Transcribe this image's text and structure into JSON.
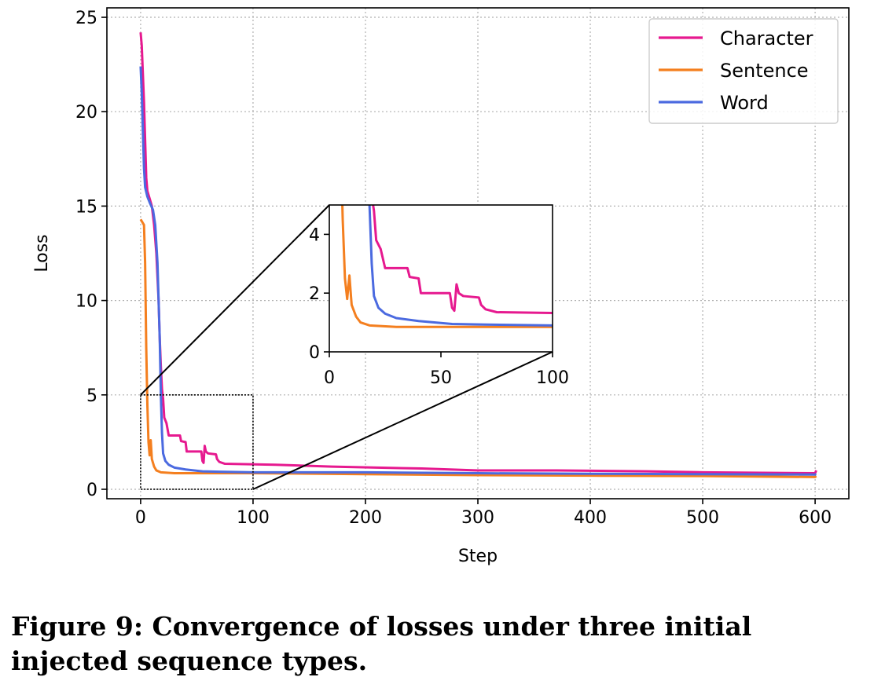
{
  "caption": "Figure 9: Convergence of losses under three initial injected sequence types.",
  "chart_data": {
    "type": "line",
    "xlabel": "Step",
    "ylabel": "Loss",
    "xlim": [
      -30,
      630
    ],
    "ylim": [
      -0.5,
      25.5
    ],
    "xticks": [
      0,
      100,
      200,
      300,
      400,
      500,
      600
    ],
    "yticks": [
      0,
      5,
      10,
      15,
      20,
      25
    ],
    "grid": true,
    "legend_position": "top-right",
    "series": [
      {
        "name": "Character",
        "color": "#e6198f",
        "points": [
          [
            0,
            24.2
          ],
          [
            1,
            23.5
          ],
          [
            2,
            22.0
          ],
          [
            3,
            20.5
          ],
          [
            4,
            18.5
          ],
          [
            5,
            16.5
          ],
          [
            6,
            15.8
          ],
          [
            8,
            15.4
          ],
          [
            10,
            15.0
          ],
          [
            12,
            14.0
          ],
          [
            14,
            12.5
          ],
          [
            16,
            10.0
          ],
          [
            17,
            8.0
          ],
          [
            18,
            6.5
          ],
          [
            19,
            5.3
          ],
          [
            20,
            4.8
          ],
          [
            21,
            3.8
          ],
          [
            23,
            3.5
          ],
          [
            25,
            2.85
          ],
          [
            35,
            2.85
          ],
          [
            36,
            2.55
          ],
          [
            40,
            2.5
          ],
          [
            41,
            2.0
          ],
          [
            54,
            2.0
          ],
          [
            55,
            1.5
          ],
          [
            56,
            1.4
          ],
          [
            57,
            2.3
          ],
          [
            58,
            2.0
          ],
          [
            60,
            1.9
          ],
          [
            67,
            1.85
          ],
          [
            68,
            1.6
          ],
          [
            70,
            1.45
          ],
          [
            75,
            1.35
          ],
          [
            120,
            1.3
          ],
          [
            170,
            1.2
          ],
          [
            250,
            1.1
          ],
          [
            300,
            1.0
          ],
          [
            370,
            1.0
          ],
          [
            450,
            0.95
          ],
          [
            500,
            0.9
          ],
          [
            600,
            0.85
          ],
          [
            601,
            1.0
          ]
        ]
      },
      {
        "name": "Sentence",
        "color": "#f47f1f",
        "points": [
          [
            0,
            14.3
          ],
          [
            1,
            14.2
          ],
          [
            3,
            14.0
          ],
          [
            4,
            12.0
          ],
          [
            5,
            7.5
          ],
          [
            6,
            4.5
          ],
          [
            7,
            2.5
          ],
          [
            8,
            1.8
          ],
          [
            9,
            2.6
          ],
          [
            10,
            1.6
          ],
          [
            12,
            1.2
          ],
          [
            14,
            1.0
          ],
          [
            18,
            0.9
          ],
          [
            30,
            0.85
          ],
          [
            100,
            0.85
          ],
          [
            200,
            0.8
          ],
          [
            300,
            0.75
          ],
          [
            400,
            0.72
          ],
          [
            500,
            0.7
          ],
          [
            600,
            0.65
          ],
          [
            601,
            0.7
          ]
        ]
      },
      {
        "name": "Word",
        "color": "#4b6ae0",
        "points": [
          [
            0,
            22.4
          ],
          [
            1,
            21.0
          ],
          [
            3,
            17.0
          ],
          [
            4,
            16.0
          ],
          [
            6,
            15.5
          ],
          [
            8,
            15.2
          ],
          [
            11,
            14.8
          ],
          [
            13,
            14.0
          ],
          [
            15,
            12.0
          ],
          [
            17,
            8.0
          ],
          [
            18,
            5.0
          ],
          [
            19,
            3.0
          ],
          [
            20,
            1.9
          ],
          [
            22,
            1.5
          ],
          [
            25,
            1.3
          ],
          [
            30,
            1.15
          ],
          [
            40,
            1.05
          ],
          [
            55,
            0.95
          ],
          [
            70,
            0.93
          ],
          [
            100,
            0.9
          ],
          [
            200,
            0.9
          ],
          [
            300,
            0.85
          ],
          [
            400,
            0.82
          ],
          [
            500,
            0.8
          ],
          [
            600,
            0.78
          ],
          [
            601,
            0.8
          ]
        ]
      }
    ],
    "inset": {
      "xlim": [
        0,
        100
      ],
      "ylim": [
        0,
        5
      ],
      "xticks": [
        0,
        50,
        100
      ],
      "yticks": [
        0,
        2,
        4
      ]
    }
  }
}
